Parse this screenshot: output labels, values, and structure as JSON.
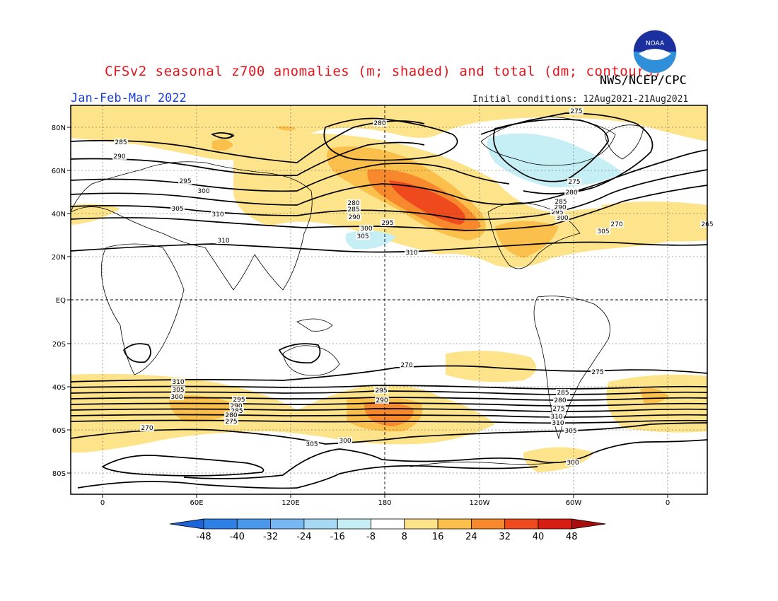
{
  "header": {
    "title": "CFSv2 seasonal z700 anomalies (m; shaded) and total (dm; contours)",
    "agency": "NWS/NCEP/CPC",
    "period": "Jan-Feb-Mar 2022",
    "initial_conditions": "Initial conditions: 12Aug2021-21Aug2021",
    "logo_text": "NOAA"
  },
  "map": {
    "lat_ticks": [
      "80N",
      "60N",
      "40N",
      "20N",
      "EQ",
      "20S",
      "40S",
      "60S",
      "80S"
    ],
    "lon_ticks": [
      "0",
      "60E",
      "120E",
      "180",
      "120W",
      "60W",
      "0"
    ],
    "contour_labels": [
      "280",
      "285",
      "290",
      "295",
      "300",
      "305",
      "310",
      "275",
      "270",
      "265",
      "280",
      "285",
      "290",
      "295",
      "300",
      "305",
      "310",
      "310",
      "305",
      "300",
      "295",
      "290",
      "285",
      "280",
      "275",
      "270",
      "275",
      "310",
      "305",
      "300",
      "295",
      "290",
      "285",
      "280",
      "275",
      "270",
      "305",
      "300",
      "295",
      "290",
      "285",
      "280",
      "275",
      "310",
      "310",
      "305",
      "300"
    ]
  },
  "colorbar": {
    "labels": [
      "-48",
      "-40",
      "-32",
      "-24",
      "-16",
      "-8",
      "8",
      "16",
      "24",
      "32",
      "40",
      "48"
    ],
    "colors": [
      "#1e64d8",
      "#2e7fe6",
      "#4a98ec",
      "#78b8f2",
      "#a8d9f4",
      "#c6eef5",
      "#ffffff",
      "#fde38a",
      "#fbbf4c",
      "#f7882c",
      "#ee4a1e",
      "#d81e12",
      "#a80e0e"
    ]
  }
}
